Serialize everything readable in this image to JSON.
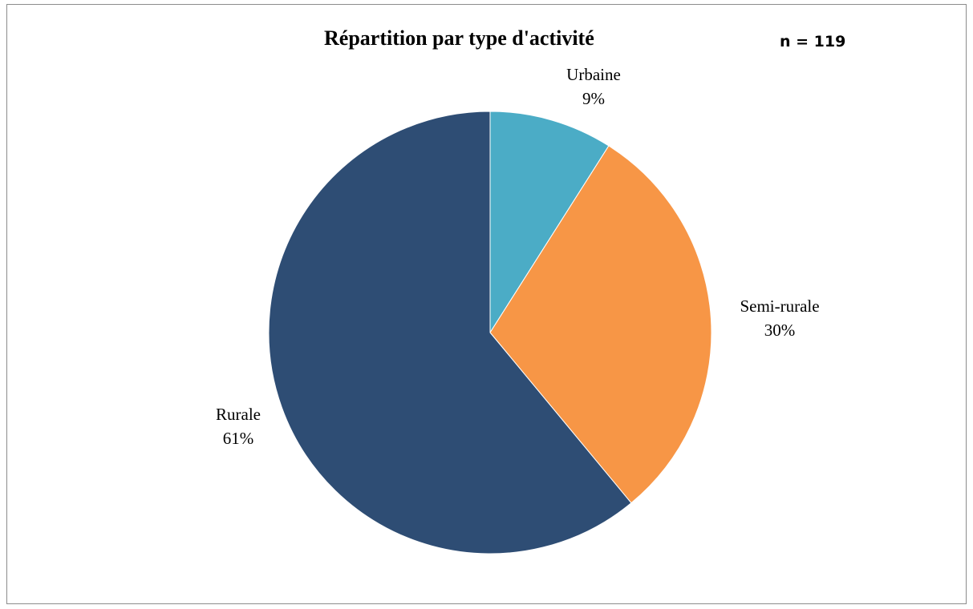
{
  "chart_data": {
    "type": "pie",
    "title": "Répartition par type d'activité",
    "annotation": "n = 119",
    "slices": [
      {
        "label": "Urbaine",
        "value": 9,
        "value_label": "9%",
        "color": "#4bacc6"
      },
      {
        "label": "Semi-rurale",
        "value": 30,
        "value_label": "30%",
        "color": "#f79646"
      },
      {
        "label": "Rurale",
        "value": 61,
        "value_label": "61%",
        "color": "#2e4d74"
      }
    ],
    "start_angle": "12 o'clock",
    "direction": "clockwise",
    "legend": "none"
  }
}
